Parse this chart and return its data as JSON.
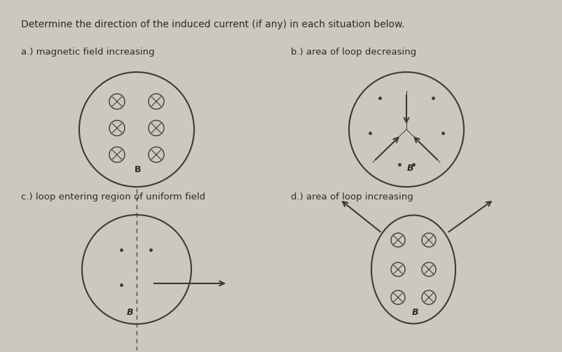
{
  "title": "Determine the direction of the induced current (if any) in each situation below.",
  "bg_color": "#ccc8be",
  "title_fontsize": 10,
  "label_a": "a.) magnetic field increasing",
  "label_b": "b.) area of loop decreasing",
  "label_c": "c.) loop entering region of uniform field",
  "label_d": "d.) area of loop increasing",
  "label_fontsize": 9.5,
  "text_color": "#2a2a2a",
  "line_color": "#3a3a3a"
}
